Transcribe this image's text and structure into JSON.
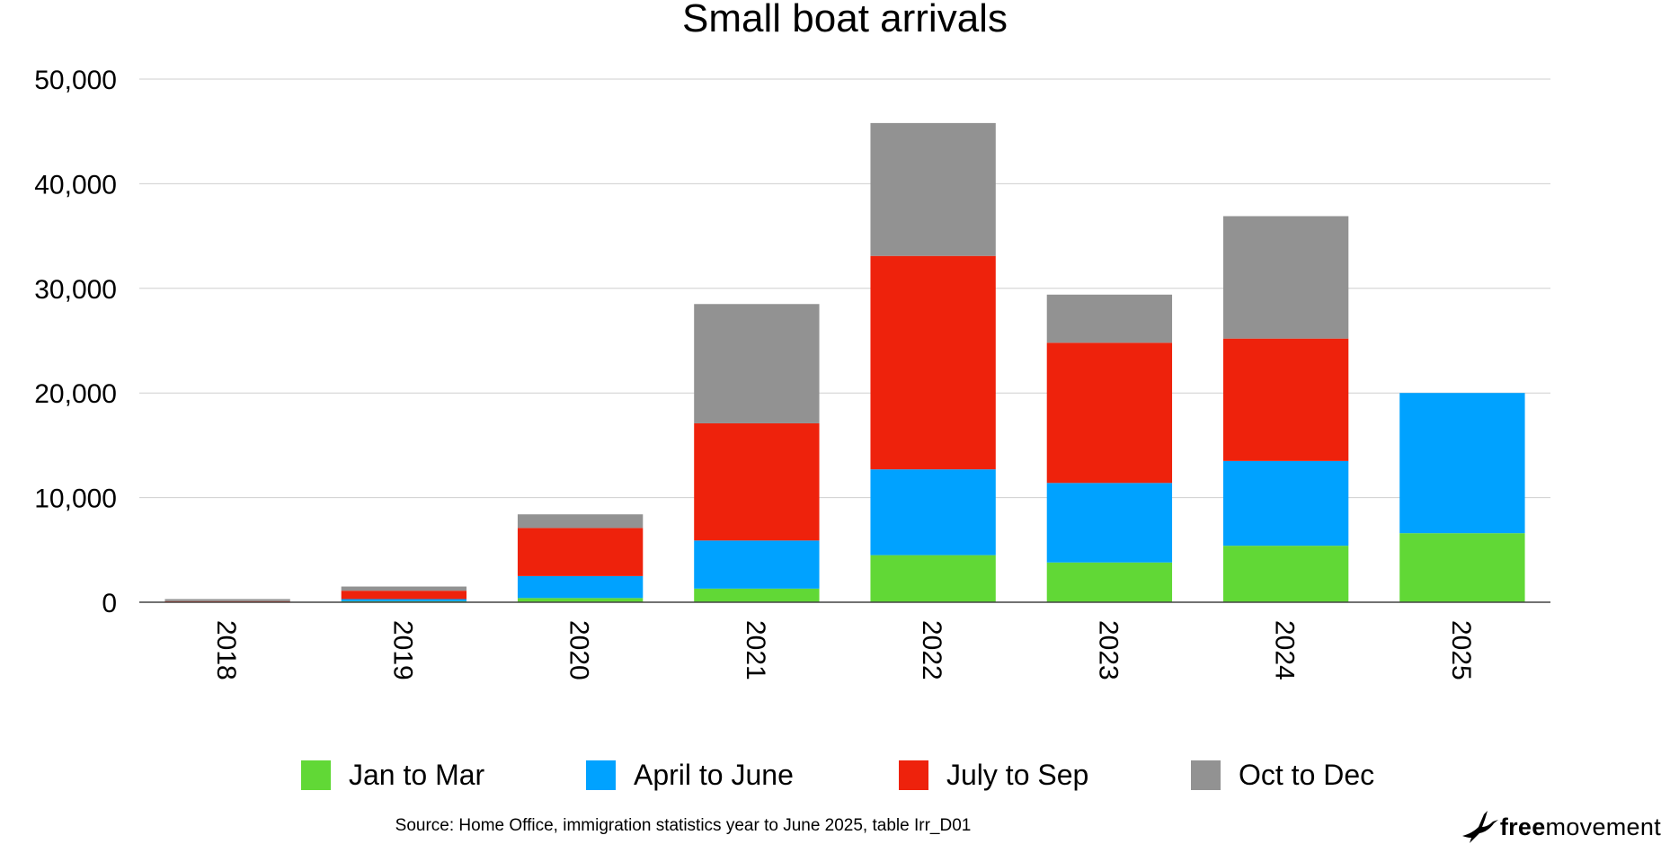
{
  "chart_data": {
    "type": "bar",
    "stacked": true,
    "title": "Small boat arrivals",
    "xlabel": "",
    "ylabel": "",
    "categories": [
      "2018",
      "2019",
      "2020",
      "2021",
      "2022",
      "2023",
      "2024",
      "2025"
    ],
    "series": [
      {
        "name": "Jan to Mar",
        "color": "#61d836",
        "values": [
          0,
          100,
          400,
          1300,
          4500,
          3800,
          5400,
          6600
        ]
      },
      {
        "name": "April to June",
        "color": "#00a2ff",
        "values": [
          0,
          200,
          2100,
          4600,
          8200,
          7600,
          8100,
          13400
        ]
      },
      {
        "name": "July to Sep",
        "color": "#ee220c",
        "values": [
          100,
          800,
          4600,
          11200,
          20400,
          13400,
          11700,
          0
        ]
      },
      {
        "name": "Oct to Dec",
        "color": "#929292",
        "values": [
          200,
          400,
          1300,
          11400,
          12700,
          4600,
          11700,
          0
        ]
      }
    ],
    "ylim": [
      0,
      50000
    ],
    "yticks": [
      0,
      10000,
      20000,
      30000,
      40000,
      50000
    ],
    "ytick_labels": [
      "0",
      "10,000",
      "20,000",
      "30,000",
      "40,000",
      "50,000"
    ],
    "grid": true,
    "legend_position": "bottom",
    "source": "Source: Home Office, immigration statistics year to June 2025, table Irr_D01"
  },
  "brand": {
    "part1": "free",
    "part2": "movement",
    "icon": "bird-logo-icon"
  }
}
